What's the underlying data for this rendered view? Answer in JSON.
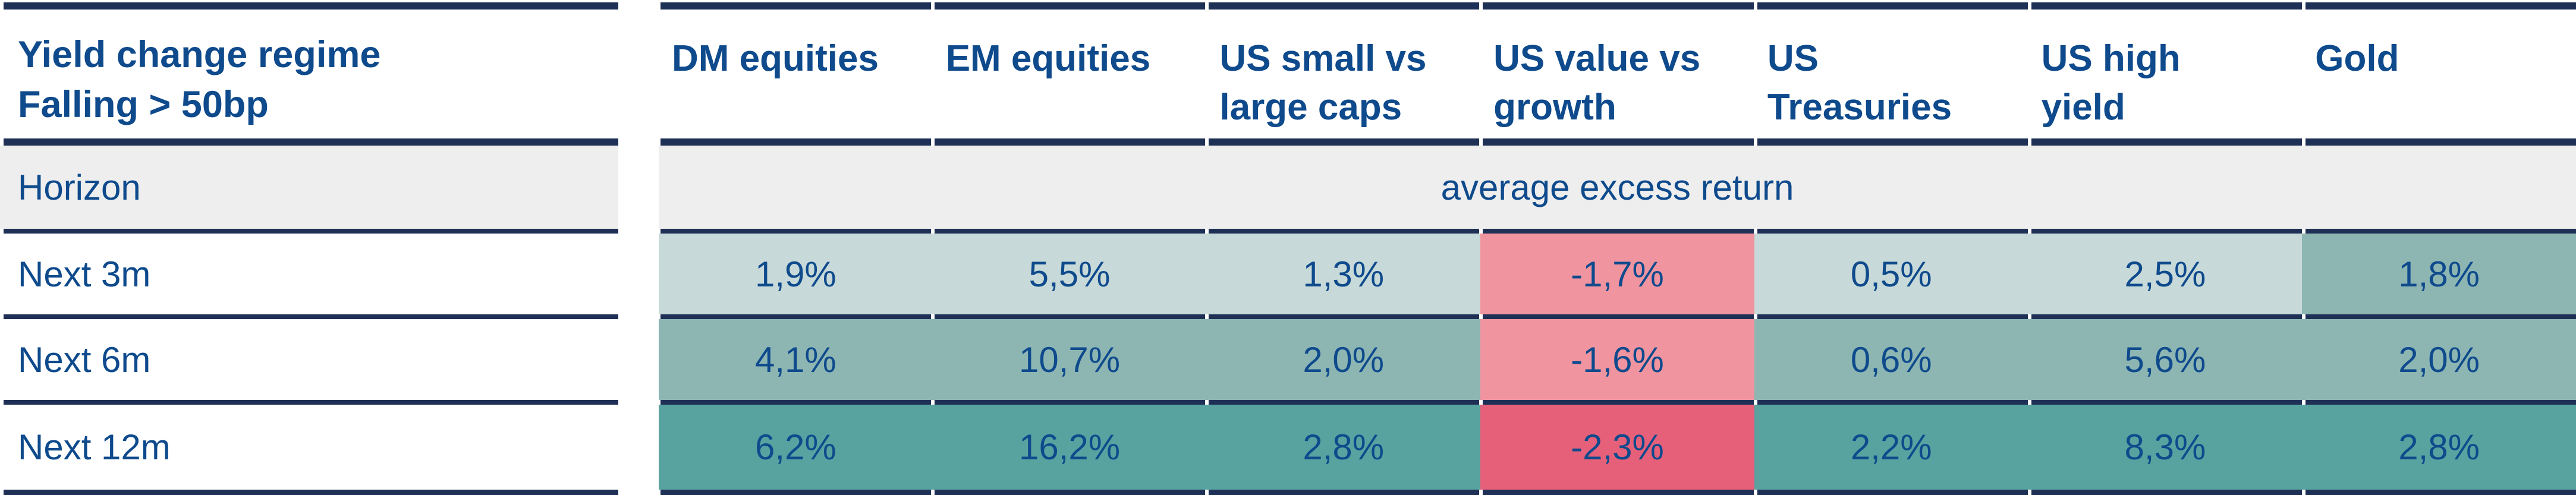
{
  "colors": {
    "navy": "#0e4a8c",
    "line": "#1f3056",
    "gray": "#eeeeee",
    "teal_light": "#c7d9d8",
    "teal_medium": "#8db6b3",
    "teal_dark": "#58a3a0",
    "pink": "#f094a0",
    "red": "#e6607a"
  },
  "table": {
    "title": [
      "Yield change regime",
      "Falling > 50bp"
    ],
    "columns": [
      [
        "DM equities"
      ],
      [
        "EM equities"
      ],
      [
        "US small vs",
        "large caps"
      ],
      [
        "US value vs",
        "growth"
      ],
      [
        "US",
        "Treasuries"
      ],
      [
        "US high",
        "yield"
      ],
      [
        "Gold"
      ]
    ],
    "horizon_label": "Horizon",
    "banner": "average excess return",
    "rows": [
      {
        "label": "Next 3m",
        "values": [
          "1,9%",
          "5,5%",
          "1,3%",
          "-1,7%",
          "0,5%",
          "2,5%",
          "1,8%"
        ],
        "colors": [
          "#c7d9d8",
          "#c7d9d8",
          "#c7d9d8",
          "#f094a0",
          "#c7d9d8",
          "#c7d9d8",
          "#8db6b3"
        ]
      },
      {
        "label": "Next 6m",
        "values": [
          "4,1%",
          "10,7%",
          "2,0%",
          "-1,6%",
          "0,6%",
          "5,6%",
          "2,0%"
        ],
        "colors": [
          "#8db6b3",
          "#8db6b3",
          "#8db6b3",
          "#f094a0",
          "#8db6b3",
          "#8db6b3",
          "#8db6b3"
        ]
      },
      {
        "label": "Next 12m",
        "values": [
          "6,2%",
          "16,2%",
          "2,8%",
          "-2,3%",
          "2,2%",
          "8,3%",
          "2,8%"
        ],
        "colors": [
          "#58a3a0",
          "#58a3a0",
          "#58a3a0",
          "#e6607a",
          "#58a3a0",
          "#58a3a0",
          "#58a3a0"
        ]
      }
    ]
  },
  "chart_data": {
    "type": "heatmap",
    "title": "Yield change regime Falling > 50bp",
    "value_label": "average excess return",
    "unit": "%",
    "x_categories": [
      "DM equities",
      "EM equities",
      "US small vs large caps",
      "US value vs growth",
      "US Treasuries",
      "US high yield",
      "Gold"
    ],
    "y_categories": [
      "Next 3m",
      "Next 6m",
      "Next 12m"
    ],
    "values": [
      [
        1.9,
        5.5,
        1.3,
        -1.7,
        0.5,
        2.5,
        1.8
      ],
      [
        4.1,
        10.7,
        2.0,
        -1.6,
        0.6,
        5.6,
        2.0
      ],
      [
        6.2,
        16.2,
        2.8,
        -2.3,
        2.2,
        8.3,
        2.8
      ]
    ],
    "color_coding": "positive values teal (darker = longer horizon), negative values pink/red",
    "decimal_separator": ","
  }
}
